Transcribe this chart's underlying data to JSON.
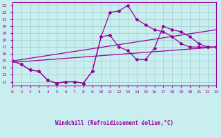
{
  "xlabel": "Windchill (Refroidissement éolien,°C)",
  "xlim": [
    0,
    23
  ],
  "ylim": [
    11.5,
    23.5
  ],
  "xticks": [
    0,
    1,
    2,
    3,
    4,
    5,
    6,
    7,
    8,
    9,
    10,
    11,
    12,
    13,
    14,
    15,
    16,
    17,
    18,
    19,
    20,
    21,
    22,
    23
  ],
  "yticks": [
    12,
    13,
    14,
    15,
    16,
    17,
    18,
    19,
    20,
    21,
    22,
    23
  ],
  "background_color": "#c8eef0",
  "line_color": "#990099",
  "grid_color": "#a0c8cc",
  "line1": {
    "x": [
      0,
      1,
      2,
      3,
      4,
      5,
      6,
      7,
      8,
      9,
      10,
      11,
      12,
      13,
      14,
      15,
      16,
      17,
      18,
      19,
      20,
      21,
      22,
      23
    ],
    "y": [
      15.0,
      14.5,
      13.7,
      13.5,
      12.2,
      11.8,
      12.0,
      12.0,
      11.8,
      13.5,
      18.5,
      18.7,
      17.0,
      16.5,
      15.2,
      15.2,
      16.8,
      20.0,
      19.5,
      19.2,
      18.5,
      17.5,
      17.0,
      17.0
    ]
  },
  "line2": {
    "x": [
      0,
      1,
      2,
      3,
      4,
      5,
      6,
      7,
      8,
      9,
      10,
      11,
      12,
      13,
      14,
      15,
      16,
      17,
      18,
      19,
      20,
      21,
      22,
      23
    ],
    "y": [
      15.0,
      14.5,
      13.7,
      13.5,
      12.2,
      11.8,
      12.0,
      12.0,
      11.8,
      13.5,
      18.5,
      22.0,
      22.2,
      23.0,
      21.0,
      20.2,
      19.5,
      19.2,
      18.5,
      17.5,
      17.0,
      17.0,
      17.0,
      17.0
    ]
  },
  "line3": {
    "x": [
      0,
      23
    ],
    "y": [
      14.8,
      17.0
    ]
  },
  "line4": {
    "x": [
      0,
      23
    ],
    "y": [
      15.0,
      19.5
    ]
  }
}
